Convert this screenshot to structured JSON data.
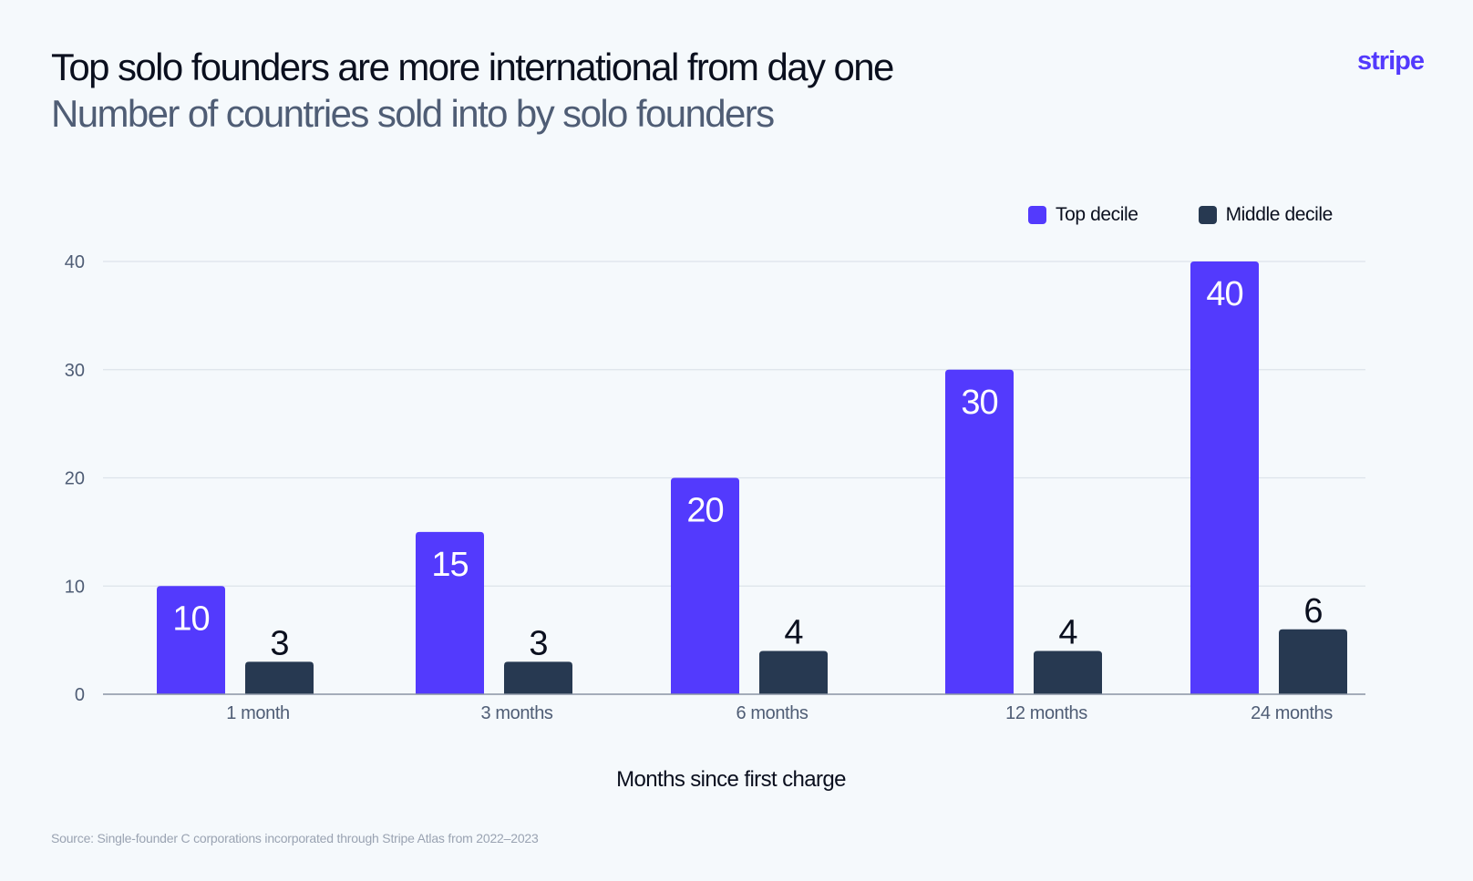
{
  "header": {
    "title": "Top solo founders are more international from day one",
    "subtitle": "Number of countries sold into by solo founders",
    "brand": "stripe"
  },
  "colors": {
    "top_decile": "#533afd",
    "middle_decile": "#273951",
    "grid": "#dde3ea",
    "axis": "#8a94a3",
    "tick_text": "#4f5d75",
    "text": "#0a0f1e"
  },
  "chart_data": {
    "type": "bar",
    "categories": [
      "1 month",
      "3 months",
      "6 months",
      "12 months",
      "24 months"
    ],
    "series": [
      {
        "name": "Top decile",
        "values": [
          10,
          15,
          20,
          30,
          40
        ]
      },
      {
        "name": "Middle decile",
        "values": [
          3,
          3,
          4,
          4,
          6
        ]
      }
    ],
    "xlabel": "Months since first charge",
    "ylabel": "",
    "ylim": [
      0,
      40
    ],
    "yticks": [
      0,
      10,
      20,
      30,
      40
    ],
    "grid": true,
    "legend_position": "top-right",
    "data_labels": true
  },
  "footer": {
    "source": "Source: Single-founder C corporations incorporated through Stripe Atlas from 2022–2023"
  }
}
